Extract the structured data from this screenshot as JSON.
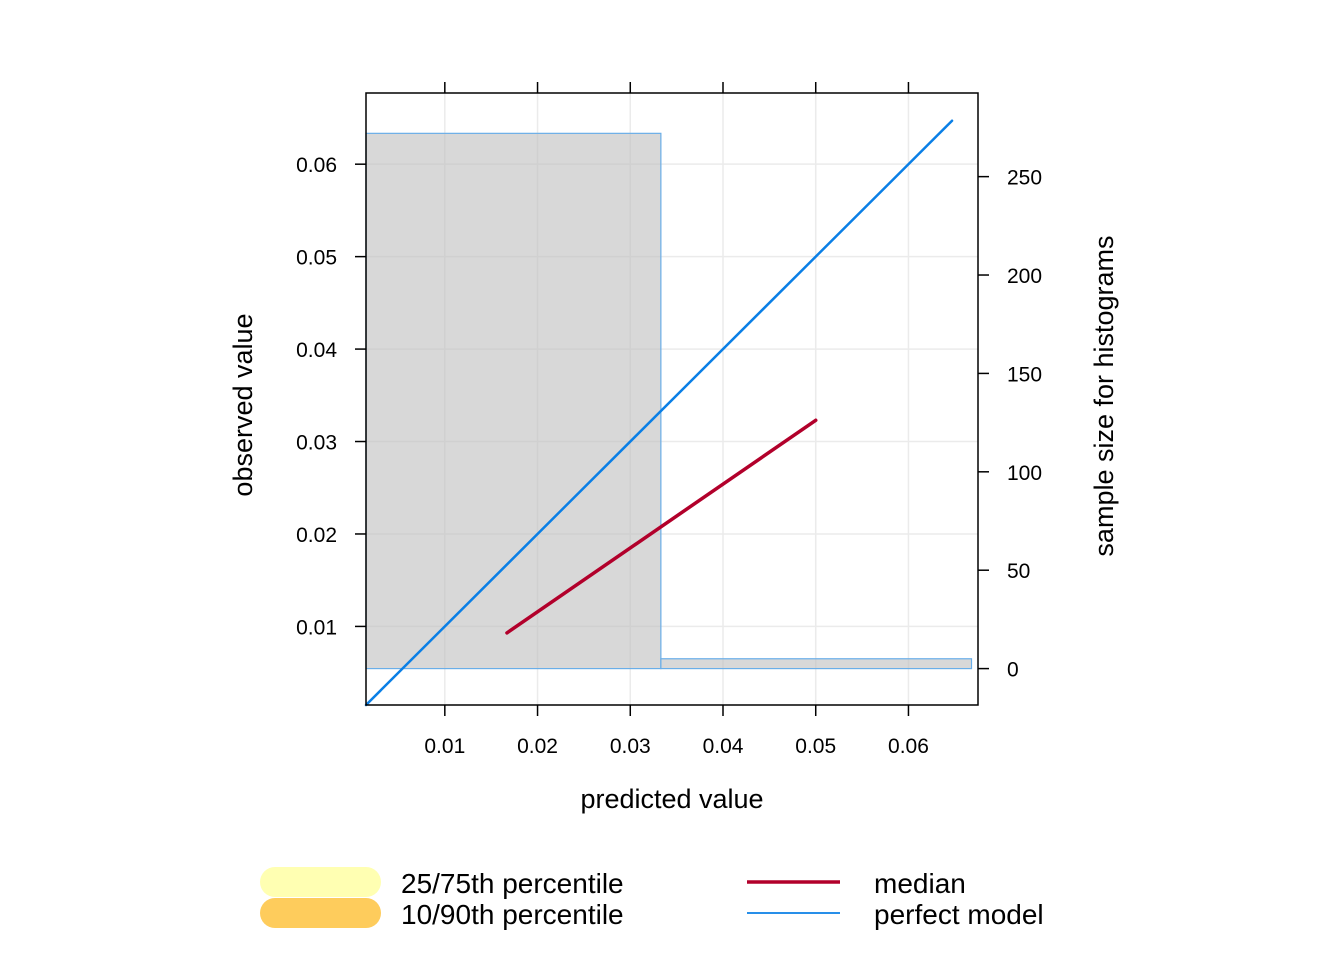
{
  "chart_data": {
    "type": "line",
    "xlabel": "predicted value",
    "ylabel": "observed value",
    "y2label": "sample size for histograms",
    "xlim": [
      0.0015,
      0.0675
    ],
    "ylim": [
      0.0015,
      0.0677
    ],
    "y2lim": [
      -18.5,
      292.5
    ],
    "x_ticks": [
      0.01,
      0.02,
      0.03,
      0.04,
      0.05,
      0.06
    ],
    "y_ticks": [
      0.01,
      0.02,
      0.03,
      0.04,
      0.05,
      0.06
    ],
    "y2_ticks": [
      0,
      50,
      100,
      150,
      200,
      250
    ],
    "x_tick_labels": [
      "0.01",
      "0.02",
      "0.03",
      "0.04",
      "0.05",
      "0.06"
    ],
    "y_tick_labels": [
      "0.01",
      "0.02",
      "0.03",
      "0.04",
      "0.05",
      "0.06"
    ],
    "y2_tick_labels": [
      "0",
      "50",
      "100",
      "150",
      "200",
      "250"
    ],
    "grid": true,
    "histogram": [
      {
        "x0": 0.0015,
        "x1": 0.0333,
        "count": 272
      },
      {
        "x0": 0.0333,
        "x1": 0.0668,
        "count": 5
      }
    ],
    "series": [
      {
        "name": "median",
        "color": "#b2002b",
        "x": [
          0.0167,
          0.05
        ],
        "y": [
          0.0093,
          0.0323
        ]
      },
      {
        "name": "perfect model",
        "color": "#0a7fe6",
        "x": [
          0.0015,
          0.0647
        ],
        "y": [
          0.0015,
          0.0647
        ]
      }
    ],
    "legend": {
      "placement": "bottom",
      "items": [
        {
          "label": "25/75th percentile",
          "color": "#ffffb2",
          "kind": "band"
        },
        {
          "label": "10/90th percentile",
          "color": "#fecc5c",
          "kind": "band"
        },
        {
          "label": "median",
          "color": "#b2002b",
          "kind": "line"
        },
        {
          "label": "perfect model",
          "color": "#0a7fe6",
          "kind": "line"
        }
      ]
    }
  }
}
